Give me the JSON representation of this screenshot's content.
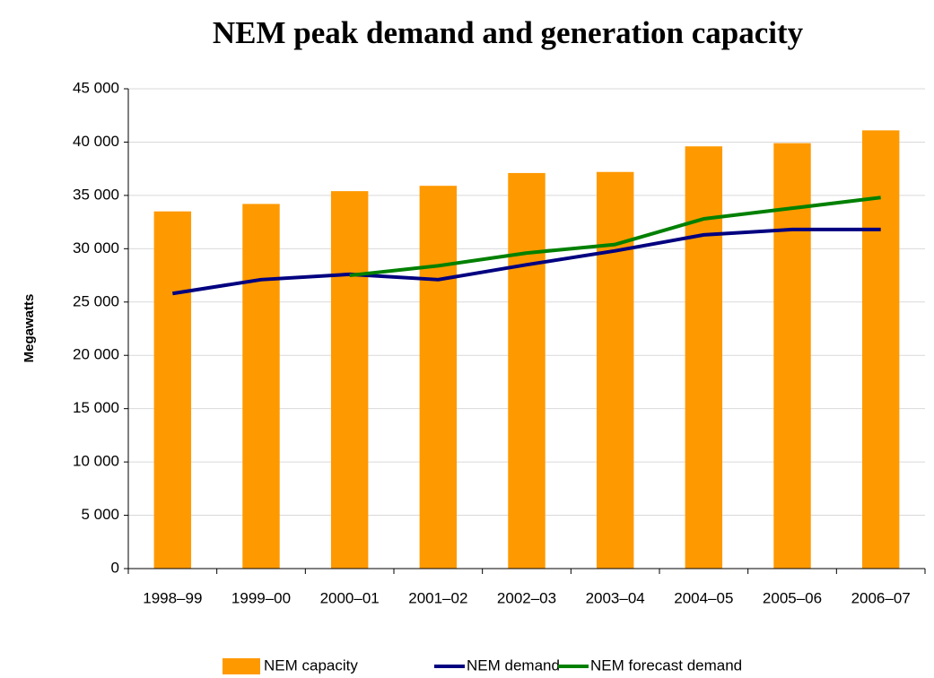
{
  "chart_data": {
    "type": "bar",
    "title": "NEM peak demand and generation capacity",
    "y_label": "Megawatts",
    "categories": [
      "1998–99",
      "1999–00",
      "2000–01",
      "2001–02",
      "2002–03",
      "2003–04",
      "2004–05",
      "2005–06",
      "2006–07"
    ],
    "series": [
      {
        "name": "NEM capacity",
        "type": "bar",
        "color": "#ff9900",
        "values": [
          33500,
          34200,
          35400,
          35900,
          37100,
          37200,
          39600,
          39900,
          41100
        ]
      },
      {
        "name": "NEM demand",
        "type": "line",
        "color": "#000080",
        "values": [
          25800,
          27100,
          27600,
          27100,
          28500,
          29800,
          31300,
          31800,
          31800
        ]
      },
      {
        "name": "NEM forecast demand",
        "type": "line",
        "color": "#008000",
        "values": [
          null,
          null,
          27500,
          28400,
          29600,
          30400,
          32800,
          33800,
          34800
        ]
      }
    ],
    "ylim": [
      0,
      45000
    ],
    "yticks": [
      0,
      {
        "value": 5000,
        "label": "5 000"
      },
      {
        "value": 10000,
        "label": "10 000"
      },
      {
        "value": 15000,
        "label": "15 000"
      },
      {
        "value": 20000,
        "label": "20 000"
      },
      {
        "value": 25000,
        "label": "25 000"
      },
      {
        "value": 30000,
        "label": "30 000"
      },
      {
        "value": 35000,
        "label": "35 000"
      },
      {
        "value": 40000,
        "label": "40 000"
      },
      {
        "value": 45000,
        "label": "45 000"
      }
    ],
    "grid": true,
    "legend": "bottom"
  }
}
